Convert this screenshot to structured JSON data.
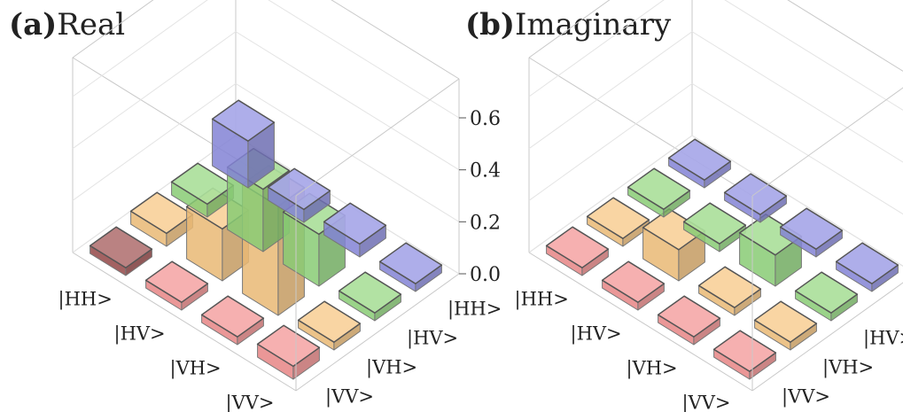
{
  "chart_data": [
    {
      "type": "bar3d",
      "panel_label": "(a)",
      "title": "Real",
      "row_labels": [
        "|HH>",
        "|HV>",
        "|VH>",
        "|VV>"
      ],
      "col_labels": [
        "|HH>",
        "|HV>",
        "|VH>",
        "|VV>"
      ],
      "zticks": [
        "0.0",
        "0.2",
        "0.4",
        "0.6"
      ],
      "zlim": [
        0,
        0.75
      ],
      "values": [
        [
          0.18,
          0.05,
          0.05,
          0.03
        ],
        [
          0.05,
          0.24,
          0.2,
          0.02
        ],
        [
          0.05,
          0.2,
          0.42,
          0.03
        ],
        [
          0.03,
          0.02,
          0.03,
          0.05
        ]
      ],
      "colors": [
        "#8a8ae0",
        "#8fd67a",
        "#f5c27a",
        "#f28c8c"
      ],
      "highlight_color": "#9b4a4a"
    },
    {
      "type": "bar3d",
      "panel_label": "(b)",
      "title": "Imaginary",
      "row_labels": [
        "|HH>",
        "|HV>",
        "|VH>",
        "|VV>"
      ],
      "col_labels": [
        "|HH>",
        "|HV>",
        "|VH>",
        "|VV>"
      ],
      "zticks": [
        "0.0",
        "0.2",
        "0.4",
        "0.6"
      ],
      "zlim": [
        0,
        0.75
      ],
      "values": [
        [
          0.0,
          0.0,
          0.0,
          0.02
        ],
        [
          0.0,
          0.0,
          0.12,
          0.03
        ],
        [
          0.0,
          -0.12,
          0.0,
          0.02
        ],
        [
          -0.02,
          -0.03,
          -0.02,
          0.0
        ]
      ],
      "colors": [
        "#8a8ae0",
        "#8fd67a",
        "#f5c27a",
        "#f28c8c"
      ]
    }
  ]
}
